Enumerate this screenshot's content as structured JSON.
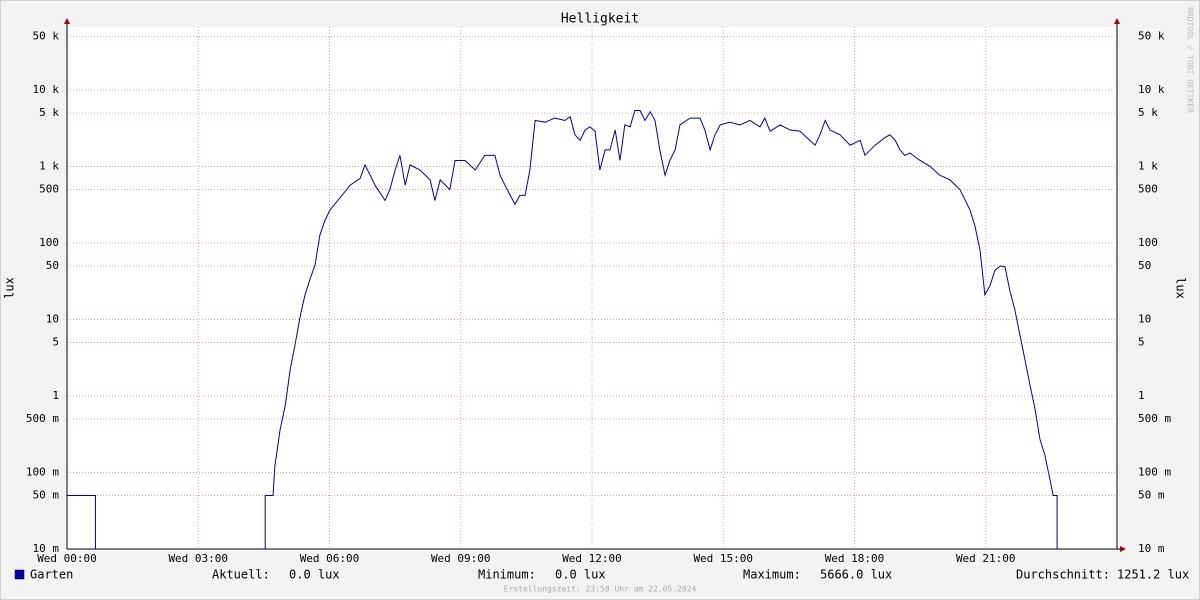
{
  "chart_data": {
    "type": "line",
    "title": "Helligkeit",
    "ylabel": "lux",
    "log_y": true,
    "grid": true,
    "xlim": [
      0,
      24
    ],
    "xticks": [
      {
        "value": 0,
        "label": "Wed 00:00"
      },
      {
        "value": 3,
        "label": "Wed 03:00"
      },
      {
        "value": 6,
        "label": "Wed 06:00"
      },
      {
        "value": 9,
        "label": "Wed 09:00"
      },
      {
        "value": 12,
        "label": "Wed 12:00"
      },
      {
        "value": 15,
        "label": "Wed 15:00"
      },
      {
        "value": 18,
        "label": "Wed 18:00"
      },
      {
        "value": 21,
        "label": "Wed 21:00"
      }
    ],
    "ylim": [
      0.01,
      66700
    ],
    "yticks": [
      {
        "value": 0.01,
        "label": "10 m"
      },
      {
        "value": 0.05,
        "label": "50 m"
      },
      {
        "value": 0.1,
        "label": "100 m"
      },
      {
        "value": 0.5,
        "label": "500 m"
      },
      1,
      5,
      10,
      50,
      100,
      500,
      {
        "value": 1000,
        "label": "1 k"
      },
      {
        "value": 5000,
        "label": "5 k"
      },
      {
        "value": 10000,
        "label": "10 k"
      },
      {
        "value": 50000,
        "label": "50 k"
      }
    ],
    "x": [
      0,
      0.65,
      0.65,
      4.53,
      4.53,
      4.71,
      4.75,
      4.87,
      4.99,
      5.1,
      5.21,
      5.33,
      5.44,
      5.55,
      5.67,
      5.78,
      5.9,
      6.01,
      6.24,
      6.47,
      6.7,
      6.81,
      6.93,
      7.04,
      7.27,
      7.38,
      7.5,
      7.61,
      7.73,
      7.84,
      8.07,
      8.3,
      8.41,
      8.53,
      8.75,
      8.87,
      9.1,
      9.33,
      9.55,
      9.78,
      9.9,
      10.01,
      10.24,
      10.35,
      10.47,
      10.58,
      10.7,
      10.93,
      11.15,
      11.38,
      11.5,
      11.61,
      11.73,
      11.84,
      11.95,
      12.07,
      12.18,
      12.3,
      12.41,
      12.53,
      12.64,
      12.75,
      12.87,
      12.98,
      13.1,
      13.21,
      13.33,
      13.44,
      13.55,
      13.67,
      13.78,
      13.9,
      14.01,
      14.24,
      14.47,
      14.58,
      14.7,
      14.81,
      14.93,
      15.15,
      15.38,
      15.61,
      15.84,
      15.95,
      16.07,
      16.3,
      16.53,
      16.75,
      16.98,
      17.1,
      17.21,
      17.33,
      17.44,
      17.67,
      17.9,
      18.13,
      18.24,
      18.47,
      18.7,
      18.81,
      18.93,
      19.04,
      19.15,
      19.27,
      19.5,
      19.73,
      19.95,
      20.18,
      20.41,
      20.64,
      20.75,
      20.87,
      20.98,
      21.1,
      21.21,
      21.33,
      21.44,
      21.55,
      21.67,
      21.78,
      21.9,
      22.01,
      22.13,
      22.24,
      22.35,
      22.47,
      22.54,
      22.63,
      22.63,
      24
    ],
    "series": [
      {
        "name": "Garten",
        "color": "#0000aa",
        "values": [
          0.05,
          0.05,
          0,
          0,
          0.05,
          0.05,
          0.12,
          0.36,
          0.76,
          2.2,
          4.6,
          11,
          21,
          33,
          52,
          127,
          200,
          270,
          390,
          570,
          700,
          1050,
          770,
          570,
          360,
          500,
          900,
          1400,
          570,
          1050,
          900,
          670,
          360,
          670,
          500,
          1200,
          1200,
          900,
          1400,
          1400,
          770,
          570,
          320,
          420,
          420,
          900,
          4000,
          3800,
          4300,
          4000,
          4500,
          2600,
          2200,
          3000,
          3300,
          2900,
          900,
          1650,
          1650,
          3000,
          1200,
          3500,
          3300,
          5400,
          5400,
          4000,
          5200,
          4000,
          1650,
          770,
          1200,
          1650,
          3500,
          4300,
          4300,
          3000,
          1650,
          2600,
          3500,
          3800,
          3500,
          4000,
          3300,
          4300,
          2900,
          3500,
          3000,
          2900,
          2200,
          1900,
          2600,
          4000,
          3000,
          2600,
          1900,
          2200,
          1400,
          1900,
          2400,
          2600,
          2200,
          1650,
          1400,
          1500,
          1200,
          1000,
          770,
          670,
          500,
          270,
          170,
          80,
          21,
          28,
          44,
          50,
          49,
          24,
          13,
          6.3,
          2.9,
          1.4,
          0.66,
          0.27,
          0.17,
          0.08,
          0.05,
          0.05,
          0,
          0
        ]
      }
    ],
    "stats": [
      {
        "label": "Aktuell:",
        "value": "0.0 lux"
      },
      {
        "label": "Minimum:",
        "value": "0.0 lux"
      },
      {
        "label": "Maximum:",
        "value": "5666.0 lux"
      },
      {
        "label": "Durchschnitt:",
        "value": "1251.2 lux"
      }
    ],
    "footer": "Erstellungszeit: 23:58 Uhr am 22.05.2024",
    "watermark": "RRDTOOL / TOBI OETIKER"
  }
}
